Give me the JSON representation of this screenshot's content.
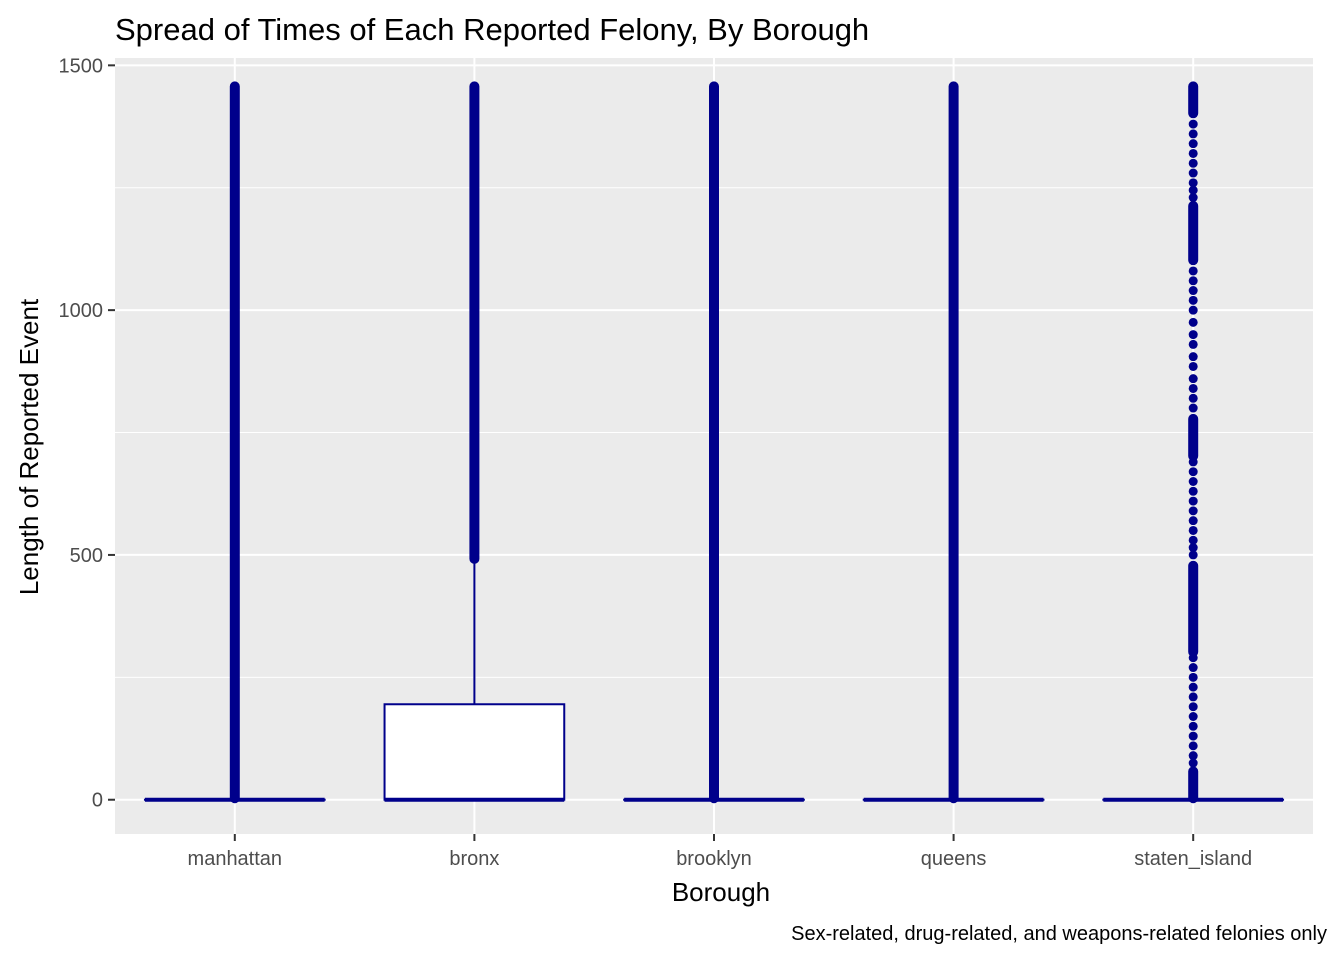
{
  "chart_data": {
    "type": "boxplot",
    "title": "Spread of Times of Each Reported Felony, By Borough",
    "xlabel": "Borough",
    "ylabel": "Length of Reported Event",
    "caption": "Sex-related, drug-related, and weapons-related felonies only",
    "categories": [
      "manhattan",
      "bronx",
      "brooklyn",
      "queens",
      "staten_island"
    ],
    "ylim": [
      -70,
      1515
    ],
    "y_ticks": [
      0,
      500,
      1000,
      1500
    ],
    "y_tick_labels": [
      "0",
      "500",
      "1000",
      "1500"
    ],
    "grid": true,
    "legend": "none",
    "colors": {
      "box_outline": "#00008b",
      "box_fill": "#ffffff",
      "outliers": "#00008b",
      "panel_background": "#ebebeb",
      "grid": "#ffffff"
    },
    "boxes": [
      {
        "category": "manhattan",
        "q1": 0,
        "median": 0,
        "q3": 0,
        "whisker_low": 0,
        "whisker_high": 0
      },
      {
        "category": "bronx",
        "q1": 0,
        "median": 0,
        "q3": 195,
        "whisker_low": 0,
        "whisker_high": 485
      },
      {
        "category": "brooklyn",
        "q1": 0,
        "median": 0,
        "q3": 0,
        "whisker_low": 0,
        "whisker_high": 0
      },
      {
        "category": "queens",
        "q1": 0,
        "median": 0,
        "q3": 0,
        "whisker_low": 0,
        "whisker_high": 0
      },
      {
        "category": "staten_island",
        "q1": 0,
        "median": 0,
        "q3": 0,
        "whisker_low": 0,
        "whisker_high": 0
      }
    ],
    "outliers": [
      {
        "category": "manhattan",
        "dense_ranges": [
          [
            1,
            1459
          ]
        ],
        "points": []
      },
      {
        "category": "bronx",
        "dense_ranges": [
          [
            490,
            1459
          ]
        ],
        "points": []
      },
      {
        "category": "brooklyn",
        "dense_ranges": [
          [
            1,
            1459
          ]
        ],
        "points": []
      },
      {
        "category": "queens",
        "dense_ranges": [
          [
            1,
            1459
          ]
        ],
        "points": []
      },
      {
        "category": "staten_island",
        "dense_ranges": [
          [
            1400,
            1459
          ],
          [
            1100,
            1215
          ],
          [
            700,
            780
          ],
          [
            300,
            480
          ],
          [
            1,
            60
          ]
        ],
        "points": [
          1380,
          1360,
          1340,
          1320,
          1300,
          1280,
          1260,
          1245,
          1230,
          1080,
          1060,
          1040,
          1020,
          1000,
          975,
          950,
          930,
          905,
          885,
          860,
          840,
          820,
          800,
          690,
          670,
          650,
          630,
          610,
          590,
          570,
          550,
          530,
          515,
          500,
          290,
          270,
          250,
          230,
          210,
          190,
          170,
          150,
          130,
          110,
          90,
          75
        ]
      }
    ]
  }
}
